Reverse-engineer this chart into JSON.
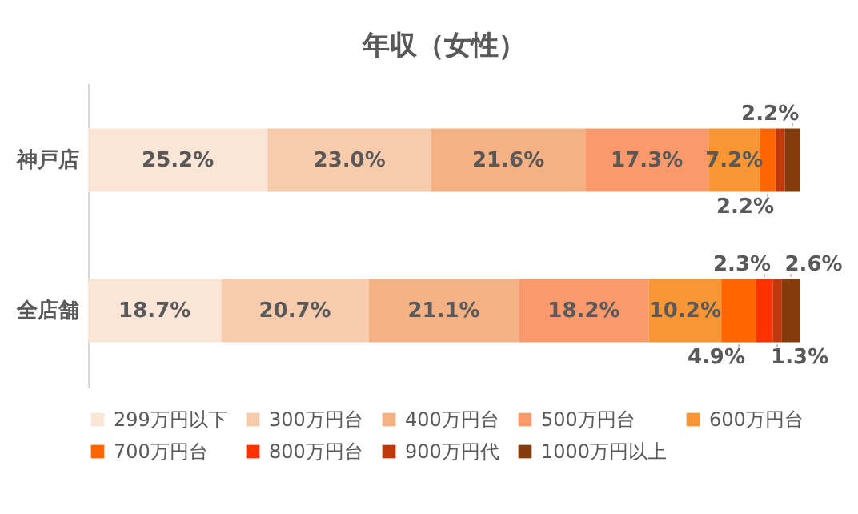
{
  "chart_data": {
    "type": "bar",
    "title": "年収（女性）",
    "orientation": "horizontal",
    "stacked": true,
    "legend": "bottom",
    "categories": [
      "神戸店",
      "全店舗"
    ],
    "series": [
      {
        "name": "299万円以下",
        "color": "#fbe5d6",
        "values": [
          25.2,
          18.7
        ],
        "value_labels": [
          "25.2%",
          "18.7%"
        ]
      },
      {
        "name": "300万円台",
        "color": "#f8cbad",
        "values": [
          23.0,
          20.7
        ],
        "value_labels": [
          "23.0%",
          "20.7%"
        ]
      },
      {
        "name": "400万円台",
        "color": "#f4b183",
        "values": [
          21.6,
          21.1
        ],
        "value_labels": [
          "21.6%",
          "21.1%"
        ]
      },
      {
        "name": "500万円台",
        "color": "#fa9a6c",
        "values": [
          17.3,
          18.2
        ],
        "value_labels": [
          "17.3%",
          "18.2%"
        ]
      },
      {
        "name": "600万円台",
        "color": "#f89535",
        "values": [
          7.2,
          10.2
        ],
        "value_labels": [
          "7.2%",
          "10.2%"
        ]
      },
      {
        "name": "700万円台",
        "color": "#ff6600",
        "values": [
          2.2,
          4.9
        ],
        "value_labels": [
          "2.2%",
          "4.9%"
        ]
      },
      {
        "name": "800万円台",
        "color": "#ff3300",
        "values": [
          null,
          2.3
        ],
        "value_labels": [
          null,
          "2.3%"
        ]
      },
      {
        "name": "900万円代",
        "color": "#c0390b",
        "values": [
          1.3,
          1.3
        ],
        "value_labels": [
          null,
          "1.3%"
        ]
      },
      {
        "name": "1000万円以上",
        "color": "#843c0c",
        "values": [
          2.2,
          2.6
        ],
        "value_labels": [
          "2.2%",
          "2.6%"
        ]
      }
    ]
  }
}
